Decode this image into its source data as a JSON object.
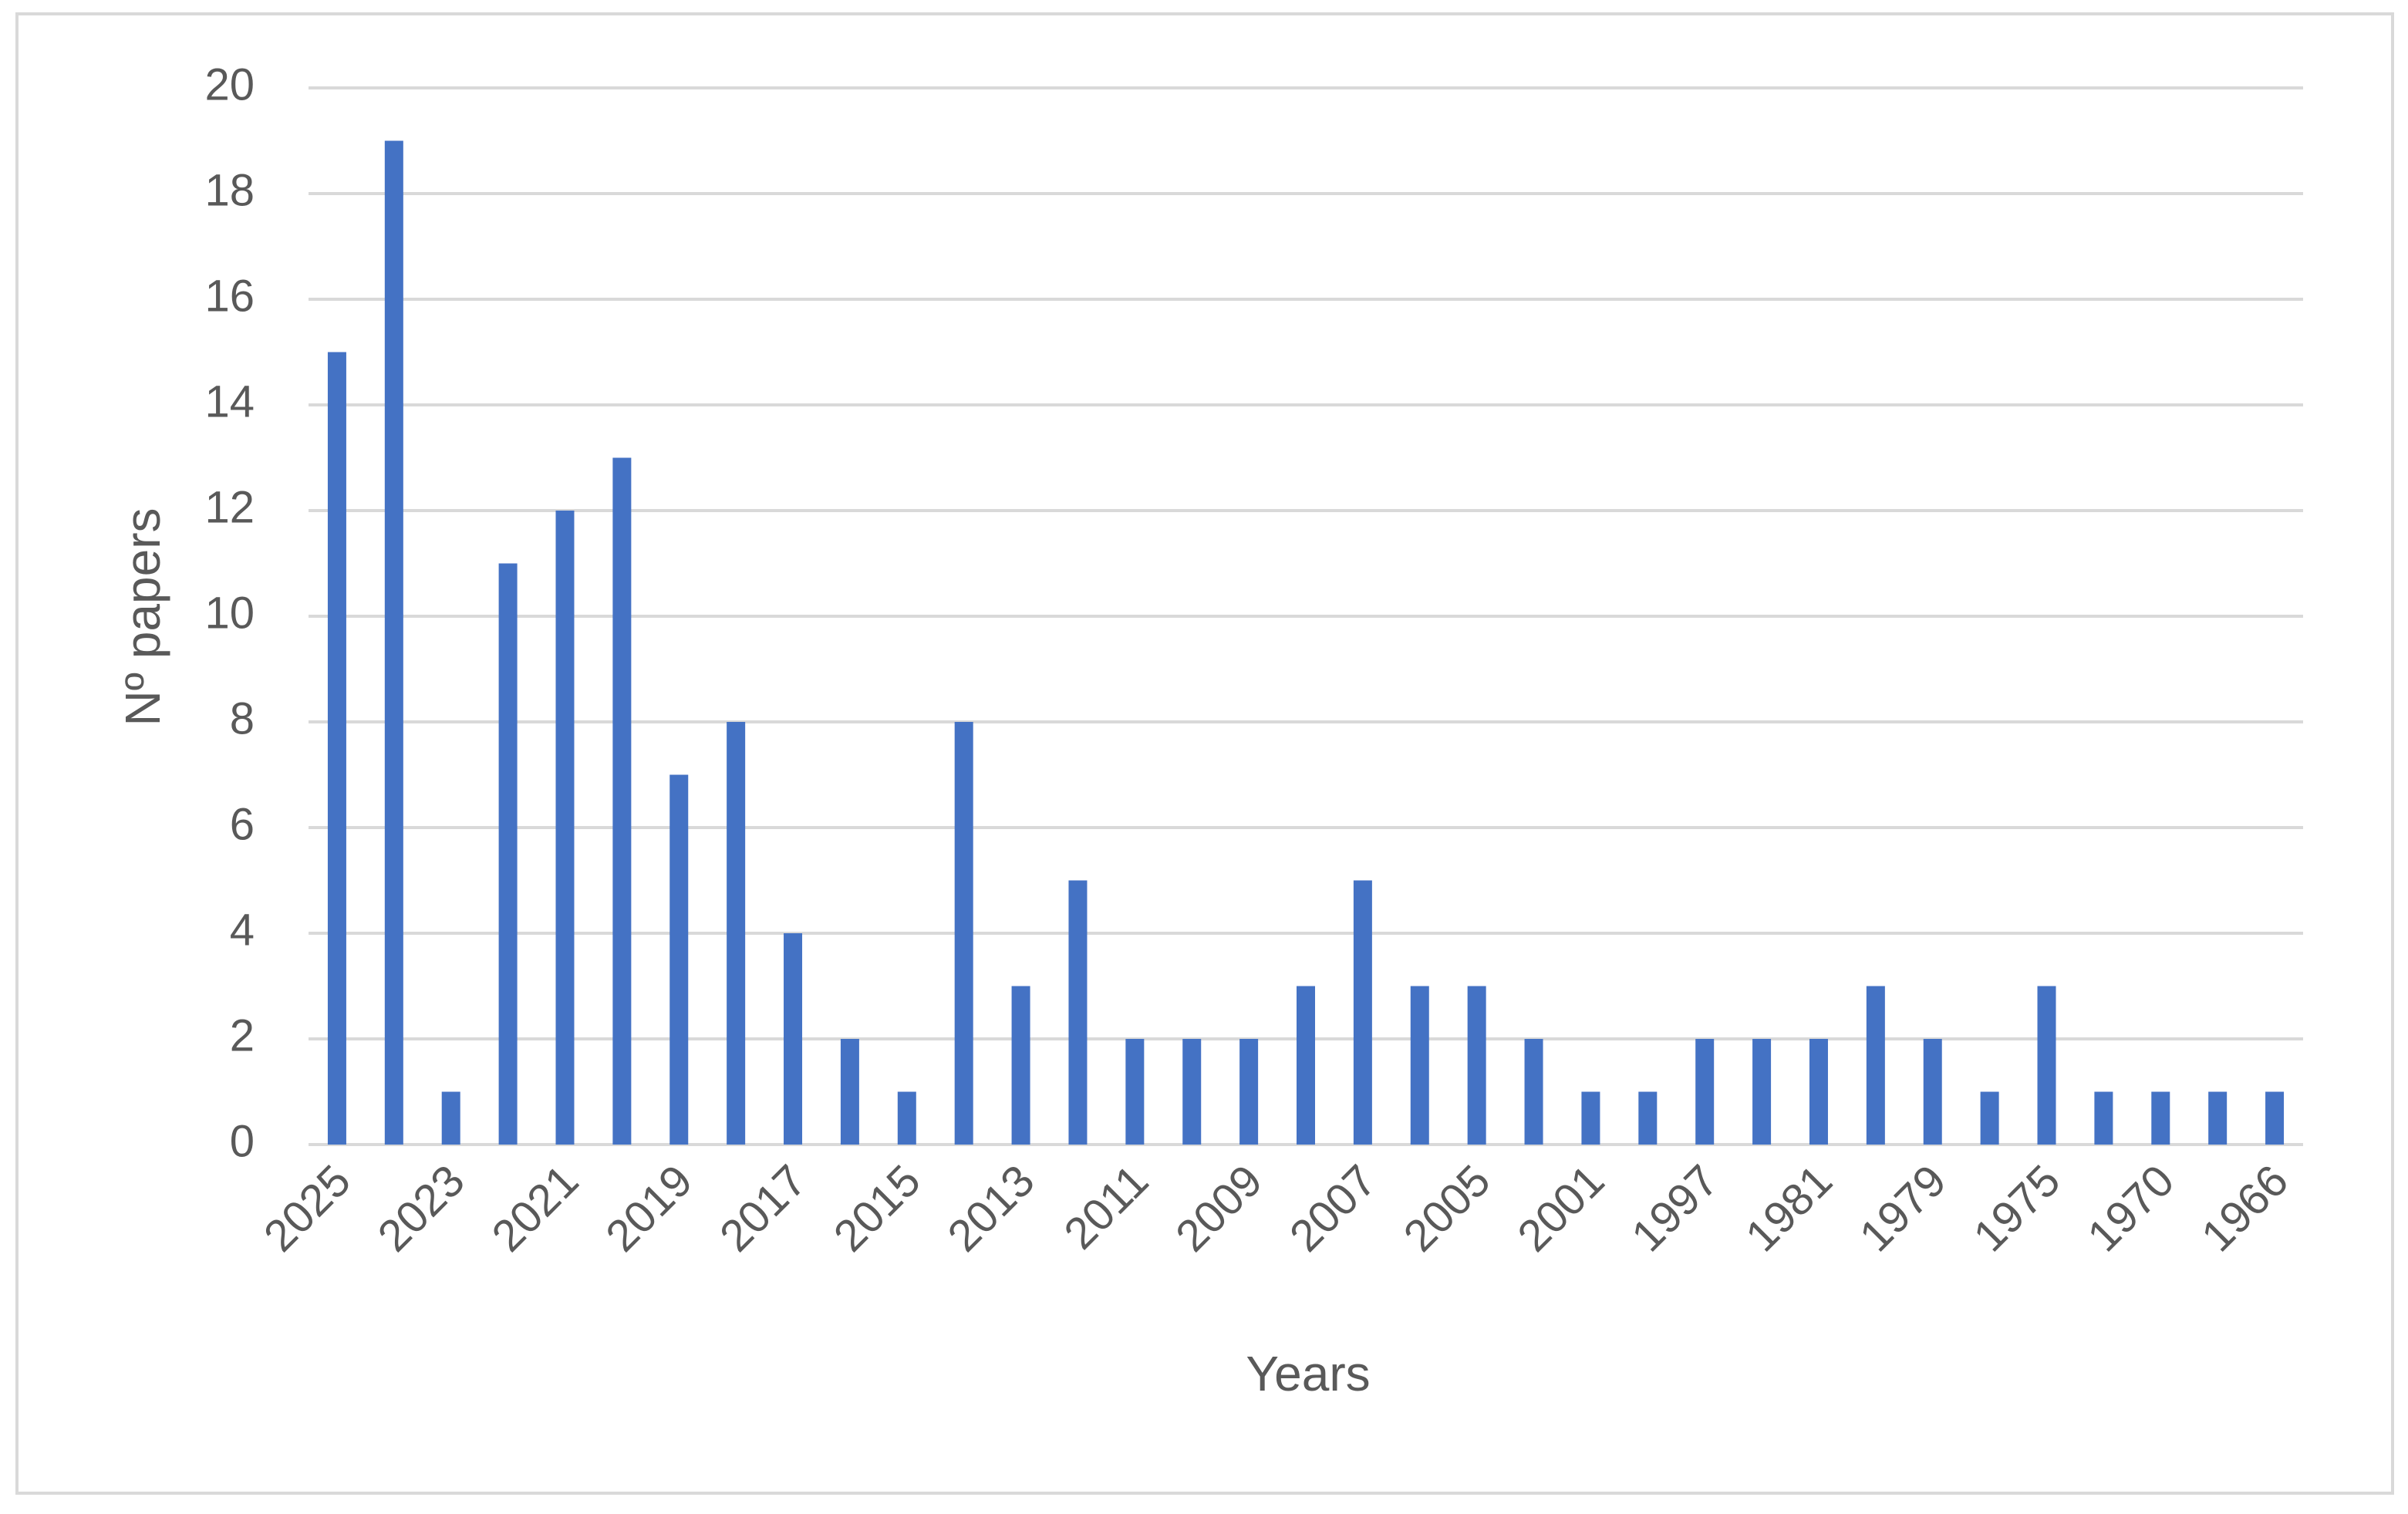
{
  "chart_data": {
    "type": "bar",
    "categories": [
      "2025",
      null,
      "2023",
      null,
      "2021",
      null,
      "2019",
      null,
      "2017",
      null,
      "2015",
      null,
      "2013",
      null,
      "2011",
      null,
      "2009",
      null,
      "2007",
      null,
      "2005",
      null,
      "2001",
      null,
      "1997",
      null,
      "1981",
      null,
      "1979",
      null,
      "1975",
      null,
      "1970",
      null,
      "1966"
    ],
    "values": [
      15,
      19,
      1,
      11,
      12,
      13,
      7,
      8,
      4,
      2,
      1,
      8,
      3,
      5,
      2,
      2,
      2,
      3,
      5,
      3,
      3,
      2,
      1,
      1,
      2,
      2,
      2,
      3,
      2,
      1,
      3,
      1,
      1,
      1,
      1
    ],
    "color": "#4472c4",
    "ylim": [
      0,
      20
    ],
    "yticks": [
      0,
      2,
      4,
      6,
      8,
      10,
      12,
      14,
      16,
      18,
      20
    ],
    "grid": true,
    "x_label": "Years",
    "y_label": "Nº papers"
  }
}
